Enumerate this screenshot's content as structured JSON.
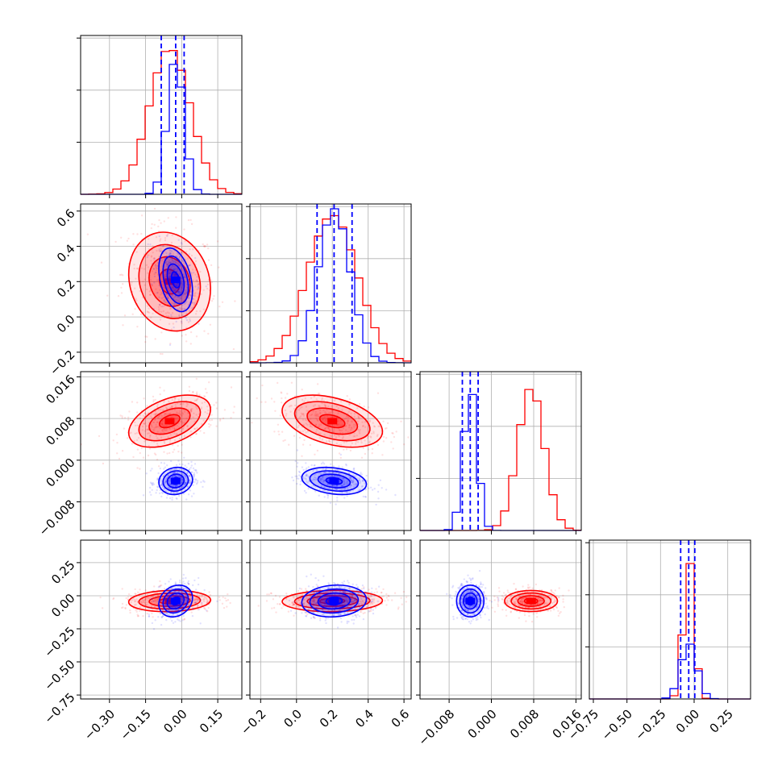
{
  "chart_data": {
    "type": "corner",
    "parameters": [
      {
        "range": [
          -0.42,
          0.25
        ],
        "ticks": [
          -0.3,
          -0.15,
          0.0,
          0.15
        ],
        "tick_labels": [
          "−0.30",
          "−0.15",
          "0.00",
          "0.15"
        ]
      },
      {
        "range": [
          -0.26,
          0.64
        ],
        "ticks": [
          -0.2,
          0.0,
          0.2,
          0.4,
          0.6
        ],
        "tick_labels": [
          "−0.2",
          "0.0",
          "0.2",
          "0.4",
          "0.6"
        ]
      },
      {
        "range": [
          -0.0135,
          0.017
        ],
        "ticks": [
          -0.008,
          0.0,
          0.008,
          0.016
        ],
        "tick_labels": [
          "−0.008",
          "0.000",
          "0.008",
          "0.016"
        ]
      },
      {
        "range": [
          -0.78,
          0.42
        ],
        "ticks": [
          -0.75,
          -0.5,
          -0.25,
          0.0,
          0.25
        ],
        "tick_labels": [
          "−0.75",
          "−0.50",
          "−0.25",
          "0.00",
          "0.25"
        ]
      }
    ],
    "series": [
      {
        "color": "#ff0000",
        "means": [
          -0.05,
          0.2,
          0.0075,
          -0.04
        ],
        "sds": [
          0.085,
          0.14,
          0.0025,
          0.04
        ],
        "correlations": {
          "0-1": -0.15,
          "0-2": 0.45,
          "1-2": -0.4,
          "0-3": 0.1,
          "1-3": 0.05,
          "2-3": 0.0
        },
        "hist_max": [
          0.92,
          0.93,
          0.9,
          0.88
        ]
      },
      {
        "color": "#0000ff",
        "means": [
          -0.025,
          0.21,
          -0.004,
          -0.04
        ],
        "sds": [
          0.035,
          0.09,
          0.0013,
          0.06
        ],
        "correlations": {
          "0-1": -0.35,
          "0-2": 0.1,
          "1-2": -0.25,
          "0-3": 0.2,
          "1-3": 0.1,
          "2-3": 0.0
        },
        "hist_max": [
          0.85,
          0.97,
          0.9,
          0.35
        ]
      }
    ],
    "quantile_lines": {
      "color": "#0000ff",
      "values": [
        [
          -0.085,
          -0.025,
          0.01
        ],
        [
          0.115,
          0.21,
          0.31
        ],
        [
          -0.0055,
          -0.004,
          -0.0025
        ],
        [
          -0.1,
          -0.04,
          0.005
        ]
      ]
    },
    "contour_levels": [
      0.5,
      1.0,
      1.5,
      2.0
    ],
    "grid": true
  }
}
